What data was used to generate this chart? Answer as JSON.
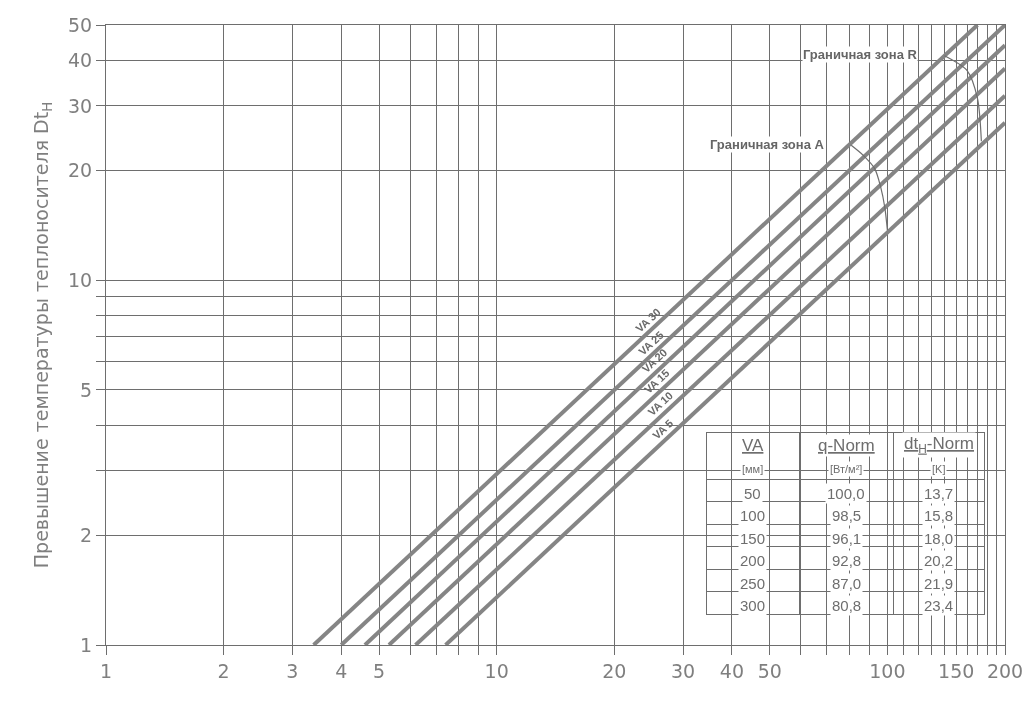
{
  "chart_data": {
    "type": "line",
    "ylabel": "Превышение температуры теплоносителя Dt$_{H}$",
    "log": "xy",
    "xlim": [
      1,
      200
    ],
    "ylim": [
      1,
      50
    ],
    "xticks": [
      1,
      2,
      3,
      4,
      5,
      {
        "value": 6,
        "label": null
      },
      {
        "value": 7,
        "label": null
      },
      {
        "value": 8,
        "label": null
      },
      {
        "value": 9,
        "label": null
      },
      10,
      20,
      30,
      40,
      50,
      {
        "value": 60,
        "label": null
      },
      {
        "value": 70,
        "label": null
      },
      {
        "value": 80,
        "label": null
      },
      {
        "value": 90,
        "label": null
      },
      100,
      {
        "value": 110,
        "label": null
      },
      {
        "value": 120,
        "label": null
      },
      {
        "value": 130,
        "label": null
      },
      {
        "value": 140,
        "label": null
      },
      150,
      {
        "value": 160,
        "label": null
      },
      {
        "value": 170,
        "label": null
      },
      {
        "value": 180,
        "label": null
      },
      {
        "value": 190,
        "label": null
      },
      200
    ],
    "yticks": [
      1,
      2,
      {
        "value": 3,
        "label": null
      },
      {
        "value": 4,
        "label": null
      },
      5,
      {
        "value": 6,
        "label": null
      },
      {
        "value": 7,
        "label": null
      },
      {
        "value": 8,
        "label": null
      },
      {
        "value": 9,
        "label": null
      },
      10,
      20,
      30,
      40,
      50
    ],
    "grid": true,
    "legend": false,
    "series": [
      {
        "name": "VA 30",
        "color": "#858585",
        "x": [
          3.4,
          170
        ],
        "values": [
          1,
          50
        ]
      },
      {
        "name": "VA 25",
        "color": "#858585",
        "x": [
          4.0,
          200
        ],
        "values": [
          1,
          50
        ]
      },
      {
        "name": "VA 20",
        "color": "#858585",
        "x": [
          4.6,
          200
        ],
        "values": [
          1,
          44
        ]
      },
      {
        "name": "VA 15",
        "color": "#858585",
        "x": [
          5.3,
          200
        ],
        "values": [
          1,
          38
        ]
      },
      {
        "name": "VA 10",
        "color": "#858585",
        "x": [
          6.2,
          200
        ],
        "values": [
          1,
          32
        ]
      },
      {
        "name": "VA 5",
        "color": "#858585",
        "x": [
          7.4,
          200
        ],
        "values": [
          1,
          27
        ]
      },
      {
        "color": "#6e6e6e",
        "x": [
          80.8,
          87.0,
          92.8,
          96.1,
          98.5,
          100.0
        ],
        "values": [
          23.4,
          21.9,
          20.2,
          18.0,
          15.8,
          13.7
        ]
      },
      {
        "color": "#6e6e6e",
        "x": [
          140,
          160,
          170,
          174
        ],
        "values": [
          41.2,
          37.5,
          31.5,
          24
        ]
      }
    ],
    "annotations": [
      {
        "text": "Граничная зона A",
        "x": 80.8,
        "y": 23.4
      },
      {
        "text": "Граничная зона R",
        "x": 140,
        "y": 41.2
      },
      "VA",
      "q-Norm",
      "dt$_{H}$-Norm",
      "[мм]",
      "[Вт/м²]",
      "[K]",
      "50",
      "100,0",
      "13,7",
      "100",
      "98,5",
      "15,8",
      "150",
      "96,1",
      "18,0",
      "200",
      "92,8",
      "20,2",
      "250",
      "87,0",
      "21,9",
      "300",
      "80,8",
      "23,4"
    ]
  }
}
